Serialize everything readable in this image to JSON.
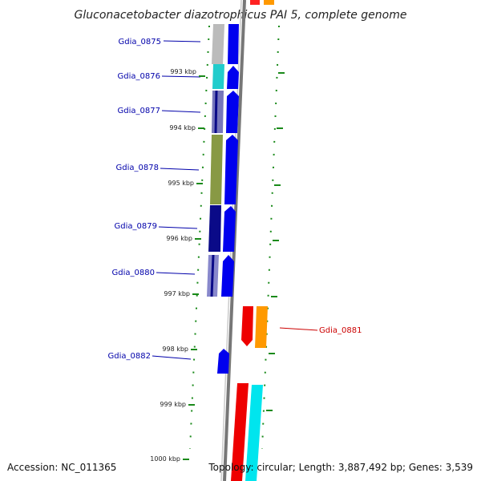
{
  "title": "Gluconacetobacter diazotrophicus PAI 5, complete genome",
  "accession": "Accession: NC_011365",
  "topology": "Topology: circular; Length: 3,887,492 bp; Genes: 3,539",
  "colors": {
    "forward_cds": "#0000ee",
    "reverse_cds": "#ff0000",
    "orange_feature": "#ff9900",
    "cyan_feature": "#00e5ee",
    "kbp_tick": "#1a7a1a",
    "backbone": "#888888",
    "label_forward": "#0000aa",
    "label_reverse": "#cc0000"
  },
  "kbp_marks": [
    "993 kbp",
    "994 kbp",
    "995 kbp",
    "996 kbp",
    "997 kbp",
    "998 kbp",
    "999 kbp",
    "1000 kbp"
  ],
  "genes": [
    {
      "label": "Gdia_0875",
      "strand": "forward"
    },
    {
      "label": "Gdia_0876",
      "strand": "forward"
    },
    {
      "label": "Gdia_0877",
      "strand": "forward"
    },
    {
      "label": "Gdia_0878",
      "strand": "forward"
    },
    {
      "label": "Gdia_0879",
      "strand": "forward"
    },
    {
      "label": "Gdia_0880",
      "strand": "forward"
    },
    {
      "label": "Gdia_0881",
      "strand": "reverse"
    },
    {
      "label": "Gdia_0882",
      "strand": "forward"
    }
  ]
}
